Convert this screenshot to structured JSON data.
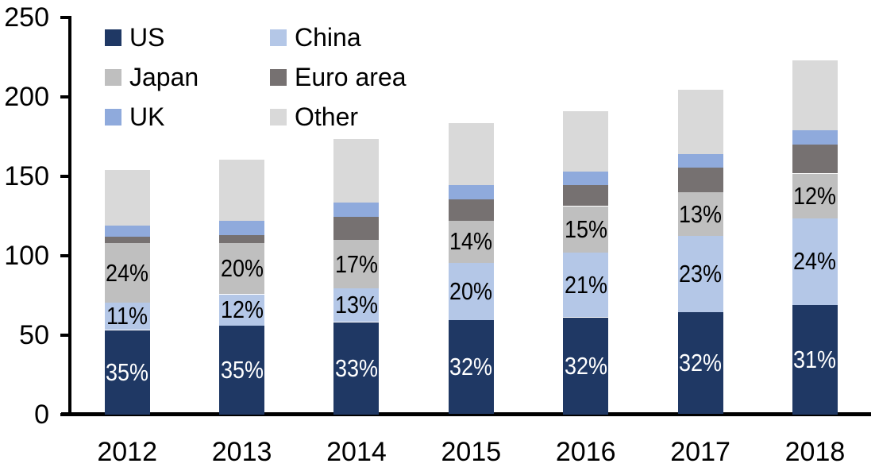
{
  "chart_data": {
    "type": "bar",
    "stacked": true,
    "title": "",
    "xlabel": "",
    "ylabel": "",
    "ylim": [
      0,
      250
    ],
    "y_ticks": [
      0,
      50,
      100,
      150,
      200,
      250
    ],
    "y_tick_labels": [
      "0",
      "50",
      "100",
      "150",
      "200",
      "250"
    ],
    "grid": false,
    "legend_position": "top-left-inside",
    "categories": [
      "2012",
      "2013",
      "2014",
      "2015",
      "2016",
      "2017",
      "2018"
    ],
    "series": [
      {
        "name": "US",
        "color": "#1f3864",
        "values": [
          53.0,
          56.0,
          58.0,
          59.4,
          61.0,
          64.4,
          69.0
        ],
        "labels": [
          "35%",
          "35%",
          "33%",
          "32%",
          "32%",
          "32%",
          "31%"
        ],
        "label_color": "#ffffff"
      },
      {
        "name": "China",
        "color": "#b4c7e7",
        "values": [
          17.2,
          19.5,
          21.3,
          35.8,
          40.9,
          47.8,
          54.5
        ],
        "labels": [
          "11%",
          "12%",
          "13%",
          "20%",
          "21%",
          "23%",
          "24%"
        ],
        "label_color": "#000000"
      },
      {
        "name": "Japan",
        "color": "#bfbfbf",
        "values": [
          37.5,
          32.2,
          30.4,
          26.7,
          29.1,
          27.5,
          28.0
        ],
        "labels": [
          "24%",
          "20%",
          "17%",
          "14%",
          "15%",
          "13%",
          "12%"
        ],
        "label_color": "#000000"
      },
      {
        "name": "Euro area",
        "color": "#767171",
        "values": [
          4.0,
          5.0,
          14.6,
          13.3,
          13.4,
          15.5,
          18.3
        ],
        "labels": null,
        "label_color": null
      },
      {
        "name": "UK",
        "color": "#8faadc",
        "values": [
          7.2,
          9.2,
          8.9,
          9.2,
          8.6,
          8.7,
          9.0
        ],
        "labels": null,
        "label_color": null
      },
      {
        "name": "Other",
        "color": "#d9d9d9",
        "values": [
          35.1,
          38.3,
          40.3,
          39.1,
          38.0,
          40.5,
          43.9
        ],
        "labels": null,
        "label_color": null
      }
    ],
    "totals": [
      154.0,
      160.2,
      173.5,
      183.5,
      191.0,
      204.4,
      222.7
    ],
    "legend_order": [
      "US",
      "China",
      "Japan",
      "Euro area",
      "UK",
      "Other"
    ]
  }
}
